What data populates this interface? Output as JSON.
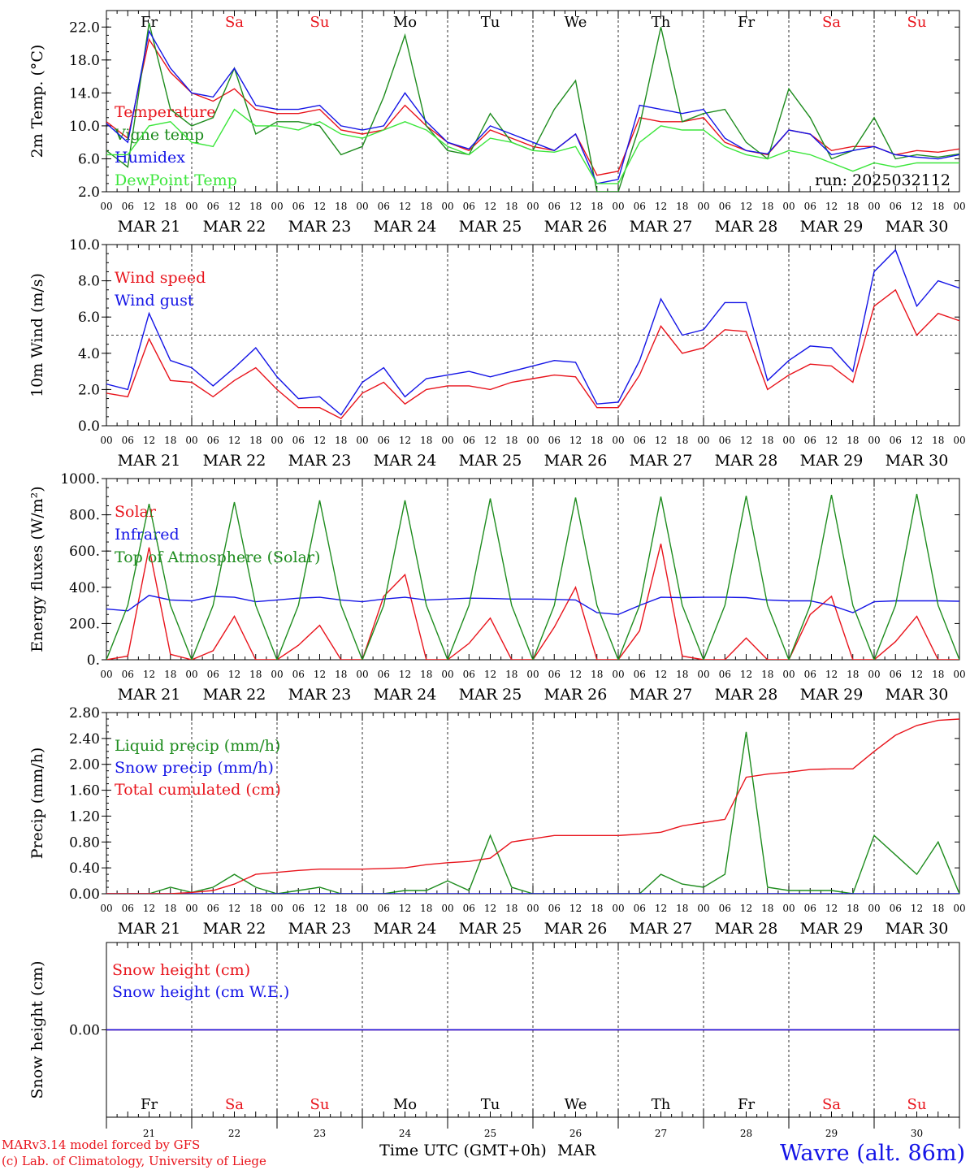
{
  "dates": [
    "MAR 21",
    "MAR 22",
    "MAR 23",
    "MAR 24",
    "MAR 25",
    "MAR 26",
    "MAR 27",
    "MAR 28",
    "MAR 29",
    "MAR 30"
  ],
  "days": [
    {
      "label": "Fr",
      "color": "#000000"
    },
    {
      "label": "Sa",
      "color": "#e8141c"
    },
    {
      "label": "Su",
      "color": "#e8141c"
    },
    {
      "label": "Mo",
      "color": "#000000"
    },
    {
      "label": "Tu",
      "color": "#000000"
    },
    {
      "label": "We",
      "color": "#000000"
    },
    {
      "label": "Th",
      "color": "#000000"
    },
    {
      "label": "Fr",
      "color": "#000000"
    },
    {
      "label": "Sa",
      "color": "#e8141c"
    },
    {
      "label": "Su",
      "color": "#e8141c"
    }
  ],
  "day_numbers": [
    "21",
    "22",
    "23",
    "24",
    "25",
    "26",
    "27",
    "28",
    "29",
    "30"
  ],
  "hour_labels": [
    "00",
    "06",
    "12",
    "18"
  ],
  "run_label": "run: 2025032112",
  "xlabel": "Time UTC (GMT+0h)",
  "month_label": "MAR",
  "footer": {
    "model": "MARv3.14 model forced by GFS",
    "credit": "(c) Lab. of Climatology, University of Liege",
    "station": "Wavre (alt. 86m)"
  },
  "colors": {
    "red": "#e8141c",
    "green": "#1e8c1e",
    "blue": "#1414e6",
    "lightgreen": "#3ce63c",
    "black": "#000000"
  },
  "chart_data": [
    {
      "type": "line",
      "ylabel": "2m Temp. (°C)",
      "ylim": [
        2,
        24
      ],
      "yticks": [
        "22.0",
        "18.0",
        "14.0",
        "10.0",
        "6.0",
        "2.0"
      ],
      "ytick_values": [
        22,
        18,
        14,
        10,
        6,
        2
      ],
      "x_hours": [
        0,
        6,
        12,
        18,
        24,
        30,
        36,
        42,
        48,
        54,
        60,
        66,
        72,
        78,
        84,
        90,
        96,
        102,
        108,
        114,
        120,
        126,
        132,
        138,
        144,
        150,
        156,
        162,
        168,
        174,
        180,
        186,
        192,
        198,
        204,
        210,
        216,
        222,
        228,
        234,
        240
      ],
      "series": [
        {
          "name": "Temperature",
          "color": "red",
          "values": [
            10.5,
            8.5,
            20.5,
            16.5,
            14.0,
            13.0,
            14.5,
            12.0,
            11.5,
            11.5,
            12.0,
            9.5,
            9.0,
            9.5,
            12.5,
            10.0,
            8.0,
            7.0,
            9.5,
            8.5,
            7.5,
            7.0,
            9.0,
            4.0,
            4.5,
            11.0,
            10.5,
            10.5,
            11.0,
            8.0,
            7.0,
            6.5,
            9.5,
            9.0,
            7.0,
            7.5,
            7.5,
            6.5,
            7.0,
            6.8,
            7.2
          ]
        },
        {
          "name": "Vigne temp",
          "color": "green",
          "values": [
            7.0,
            5.0,
            22.5,
            12.0,
            10.0,
            11.0,
            17.0,
            9.0,
            10.5,
            10.5,
            10.0,
            6.5,
            7.5,
            13.5,
            21.0,
            10.0,
            7.0,
            6.5,
            11.5,
            8.0,
            7.0,
            12.0,
            15.5,
            2.0,
            2.0,
            10.0,
            22.0,
            10.5,
            11.5,
            12.0,
            8.0,
            6.0,
            14.5,
            11.0,
            6.0,
            7.0,
            11.0,
            6.0,
            6.5,
            6.2,
            6.6
          ]
        },
        {
          "name": "Humidex",
          "color": "blue",
          "values": [
            10.3,
            8.0,
            21.5,
            17.0,
            14.0,
            13.5,
            17.0,
            12.5,
            12.0,
            12.0,
            12.5,
            10.0,
            9.5,
            10.0,
            14.0,
            10.5,
            8.0,
            7.2,
            10.0,
            9.0,
            8.0,
            7.0,
            9.0,
            3.0,
            3.5,
            12.5,
            12.0,
            11.5,
            12.0,
            8.5,
            7.0,
            6.6,
            9.5,
            9.0,
            6.5,
            7.0,
            7.5,
            6.5,
            6.2,
            6.0,
            6.5
          ]
        },
        {
          "name": "DewPoint Temp",
          "color": "lightgreen",
          "values": [
            6.5,
            6.5,
            10.0,
            10.5,
            8.0,
            7.5,
            12.0,
            10.0,
            10.0,
            9.5,
            10.5,
            9.0,
            8.5,
            9.5,
            10.5,
            9.5,
            7.5,
            6.5,
            8.5,
            8.0,
            7.0,
            6.8,
            7.5,
            3.0,
            3.0,
            8.0,
            10.0,
            9.5,
            9.5,
            7.5,
            6.5,
            6.0,
            7.0,
            6.5,
            5.5,
            4.5,
            5.5,
            5.0,
            5.5,
            5.5,
            5.5
          ]
        }
      ]
    },
    {
      "type": "line",
      "ylabel": "10m Wind (m/s)",
      "ylim": [
        0,
        10
      ],
      "yticks": [
        "10.0",
        "8.0",
        "6.0",
        "4.0",
        "2.0",
        "0.0"
      ],
      "ytick_values": [
        10,
        8,
        6,
        4,
        2,
        0
      ],
      "reference_line": 5,
      "x_hours": [
        0,
        6,
        12,
        18,
        24,
        30,
        36,
        42,
        48,
        54,
        60,
        66,
        72,
        78,
        84,
        90,
        96,
        102,
        108,
        114,
        120,
        126,
        132,
        138,
        144,
        150,
        156,
        162,
        168,
        174,
        180,
        186,
        192,
        198,
        204,
        210,
        216,
        222,
        228,
        234,
        240
      ],
      "series": [
        {
          "name": "Wind speed",
          "color": "red",
          "values": [
            1.8,
            1.6,
            4.8,
            2.5,
            2.4,
            1.6,
            2.5,
            3.2,
            2.0,
            1.0,
            1.0,
            0.4,
            1.8,
            2.4,
            1.2,
            2.0,
            2.2,
            2.2,
            2.0,
            2.4,
            2.6,
            2.8,
            2.7,
            1.0,
            1.0,
            2.8,
            5.5,
            4.0,
            4.3,
            5.3,
            5.2,
            2.0,
            2.8,
            3.4,
            3.3,
            2.4,
            6.6,
            7.5,
            5.0,
            6.2,
            5.8
          ]
        },
        {
          "name": "Wind gust",
          "color": "blue",
          "values": [
            2.3,
            2.0,
            6.2,
            3.6,
            3.2,
            2.2,
            3.2,
            4.3,
            2.7,
            1.5,
            1.6,
            0.6,
            2.4,
            3.2,
            1.6,
            2.6,
            2.8,
            3.0,
            2.7,
            3.0,
            3.3,
            3.6,
            3.5,
            1.2,
            1.3,
            3.6,
            7.0,
            5.0,
            5.3,
            6.8,
            6.8,
            2.5,
            3.6,
            4.4,
            4.3,
            3.0,
            8.5,
            9.7,
            6.6,
            8.0,
            7.6
          ]
        }
      ]
    },
    {
      "type": "line",
      "ylabel": "Energy fluxes (W/m²)",
      "ylim": [
        0,
        1000
      ],
      "yticks": [
        "1000.",
        "800.",
        "600.",
        "400.",
        "200.",
        "0."
      ],
      "ytick_values": [
        1000,
        800,
        600,
        400,
        200,
        0
      ],
      "x_hours": [
        0,
        6,
        12,
        18,
        24,
        30,
        36,
        42,
        48,
        54,
        60,
        66,
        72,
        78,
        84,
        90,
        96,
        102,
        108,
        114,
        120,
        126,
        132,
        138,
        144,
        150,
        156,
        162,
        168,
        174,
        180,
        186,
        192,
        198,
        204,
        210,
        216,
        222,
        228,
        234,
        240
      ],
      "series": [
        {
          "name": "Solar",
          "color": "red",
          "values": [
            0,
            20,
            620,
            30,
            0,
            50,
            240,
            0,
            0,
            80,
            190,
            0,
            0,
            350,
            470,
            0,
            0,
            90,
            230,
            0,
            0,
            180,
            400,
            0,
            0,
            160,
            640,
            20,
            0,
            0,
            120,
            0,
            0,
            250,
            350,
            0,
            0,
            100,
            240,
            0,
            0
          ]
        },
        {
          "name": "Infrared",
          "color": "blue",
          "values": [
            280,
            270,
            355,
            330,
            325,
            350,
            345,
            320,
            330,
            340,
            345,
            330,
            320,
            335,
            345,
            330,
            335,
            340,
            338,
            335,
            335,
            333,
            330,
            260,
            250,
            300,
            345,
            343,
            345,
            345,
            343,
            330,
            325,
            325,
            300,
            260,
            320,
            325,
            325,
            325,
            323
          ]
        },
        {
          "name": "Top of Atmosphere (Solar)",
          "color": "green",
          "values": [
            0,
            300,
            860,
            300,
            0,
            300,
            870,
            300,
            0,
            300,
            880,
            300,
            0,
            300,
            880,
            300,
            0,
            300,
            890,
            300,
            0,
            300,
            895,
            300,
            0,
            300,
            900,
            300,
            0,
            300,
            905,
            300,
            0,
            300,
            910,
            300,
            0,
            300,
            915,
            300,
            0
          ]
        }
      ]
    },
    {
      "type": "line",
      "ylabel": "Precip (mm/h)",
      "ylim": [
        0,
        2.8
      ],
      "yticks": [
        "2.80",
        "2.40",
        "2.00",
        "1.60",
        "1.20",
        "0.80",
        "0.40",
        "0.00"
      ],
      "ytick_values": [
        2.8,
        2.4,
        2.0,
        1.6,
        1.2,
        0.8,
        0.4,
        0.0
      ],
      "x_hours": [
        0,
        6,
        12,
        18,
        24,
        30,
        36,
        42,
        48,
        54,
        60,
        66,
        72,
        78,
        84,
        90,
        96,
        102,
        108,
        114,
        120,
        126,
        132,
        138,
        144,
        150,
        156,
        162,
        168,
        174,
        180,
        186,
        192,
        198,
        204,
        210,
        216,
        222,
        228,
        234,
        240
      ],
      "series": [
        {
          "name": "Liquid precip (mm/h)",
          "color": "green",
          "values": [
            0,
            0,
            0,
            0.1,
            0.02,
            0.1,
            0.3,
            0.1,
            0,
            0.05,
            0.1,
            0,
            0,
            0,
            0.05,
            0.05,
            0.2,
            0.05,
            0.9,
            0.1,
            0,
            0,
            0,
            0,
            0,
            0,
            0.3,
            0.15,
            0.1,
            0.3,
            2.5,
            0.1,
            0.05,
            0.05,
            0.05,
            0,
            0.9,
            0.6,
            0.3,
            0.8,
            0
          ]
        },
        {
          "name": "Snow precip (mm/h)",
          "color": "blue",
          "values": [
            0,
            0,
            0,
            0,
            0,
            0,
            0,
            0,
            0,
            0,
            0,
            0,
            0,
            0,
            0,
            0,
            0,
            0,
            0,
            0,
            0,
            0,
            0,
            0,
            0,
            0,
            0,
            0,
            0,
            0,
            0,
            0,
            0,
            0,
            0,
            0,
            0,
            0,
            0,
            0,
            0
          ]
        },
        {
          "name": "Total cumulated (cm)",
          "color": "red",
          "values": [
            0,
            0,
            0,
            0,
            0.02,
            0.05,
            0.15,
            0.3,
            0.33,
            0.36,
            0.38,
            0.38,
            0.38,
            0.39,
            0.4,
            0.45,
            0.48,
            0.5,
            0.55,
            0.8,
            0.85,
            0.9,
            0.9,
            0.9,
            0.9,
            0.92,
            0.95,
            1.05,
            1.1,
            1.15,
            1.8,
            1.85,
            1.88,
            1.92,
            1.93,
            1.93,
            2.2,
            2.45,
            2.6,
            2.68,
            2.7
          ]
        }
      ]
    },
    {
      "type": "line",
      "ylabel": "Snow height (cm)",
      "ylim": [
        -1,
        1
      ],
      "yticks": [
        "0.00"
      ],
      "ytick_values": [
        0
      ],
      "x_hours": [
        0,
        240
      ],
      "series": [
        {
          "name": "Snow height (cm)",
          "color": "red",
          "values": [
            0,
            0
          ]
        },
        {
          "name": "Snow height (cm W.E.)",
          "color": "blue",
          "values": [
            0,
            0
          ]
        }
      ]
    }
  ]
}
